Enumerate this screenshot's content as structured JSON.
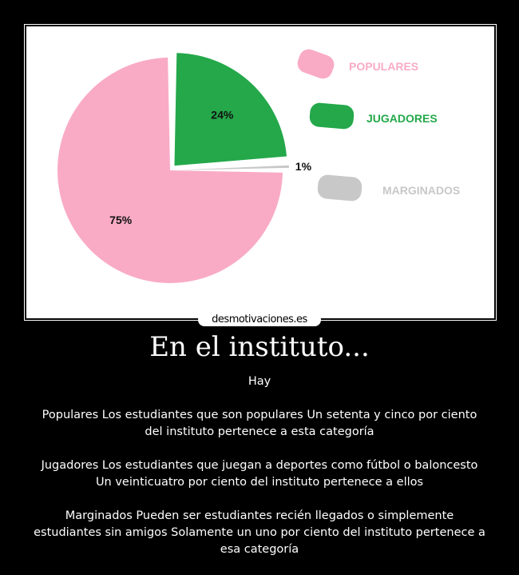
{
  "chart_data": {
    "type": "pie",
    "categories": [
      "POPULARES",
      "JUGADORES",
      "MARGINADOS"
    ],
    "values": [
      75,
      24,
      1
    ],
    "labels": [
      "75%",
      "24%",
      "1%"
    ],
    "colors": [
      "#f9abc6",
      "#24a84a",
      "#c8c8c8"
    ],
    "legend_placement": "right"
  },
  "watermark": "desmotivaciones.es",
  "title": "En el instituto...",
  "paragraphs": [
    "Hay",
    "Populares  Los estudiantes que son populares Un setenta y cinco por ciento del instituto pertenece a esta categoría",
    "Jugadores  Los estudiantes que juegan a deportes como fútbol o baloncesto Un veinticuatro por ciento del instituto pertenece a ellos",
    "Marginados  Pueden ser estudiantes recién llegados o simplemente estudiantes sin amigos Solamente un uno por ciento del instituto pertenece a esa categoría"
  ]
}
